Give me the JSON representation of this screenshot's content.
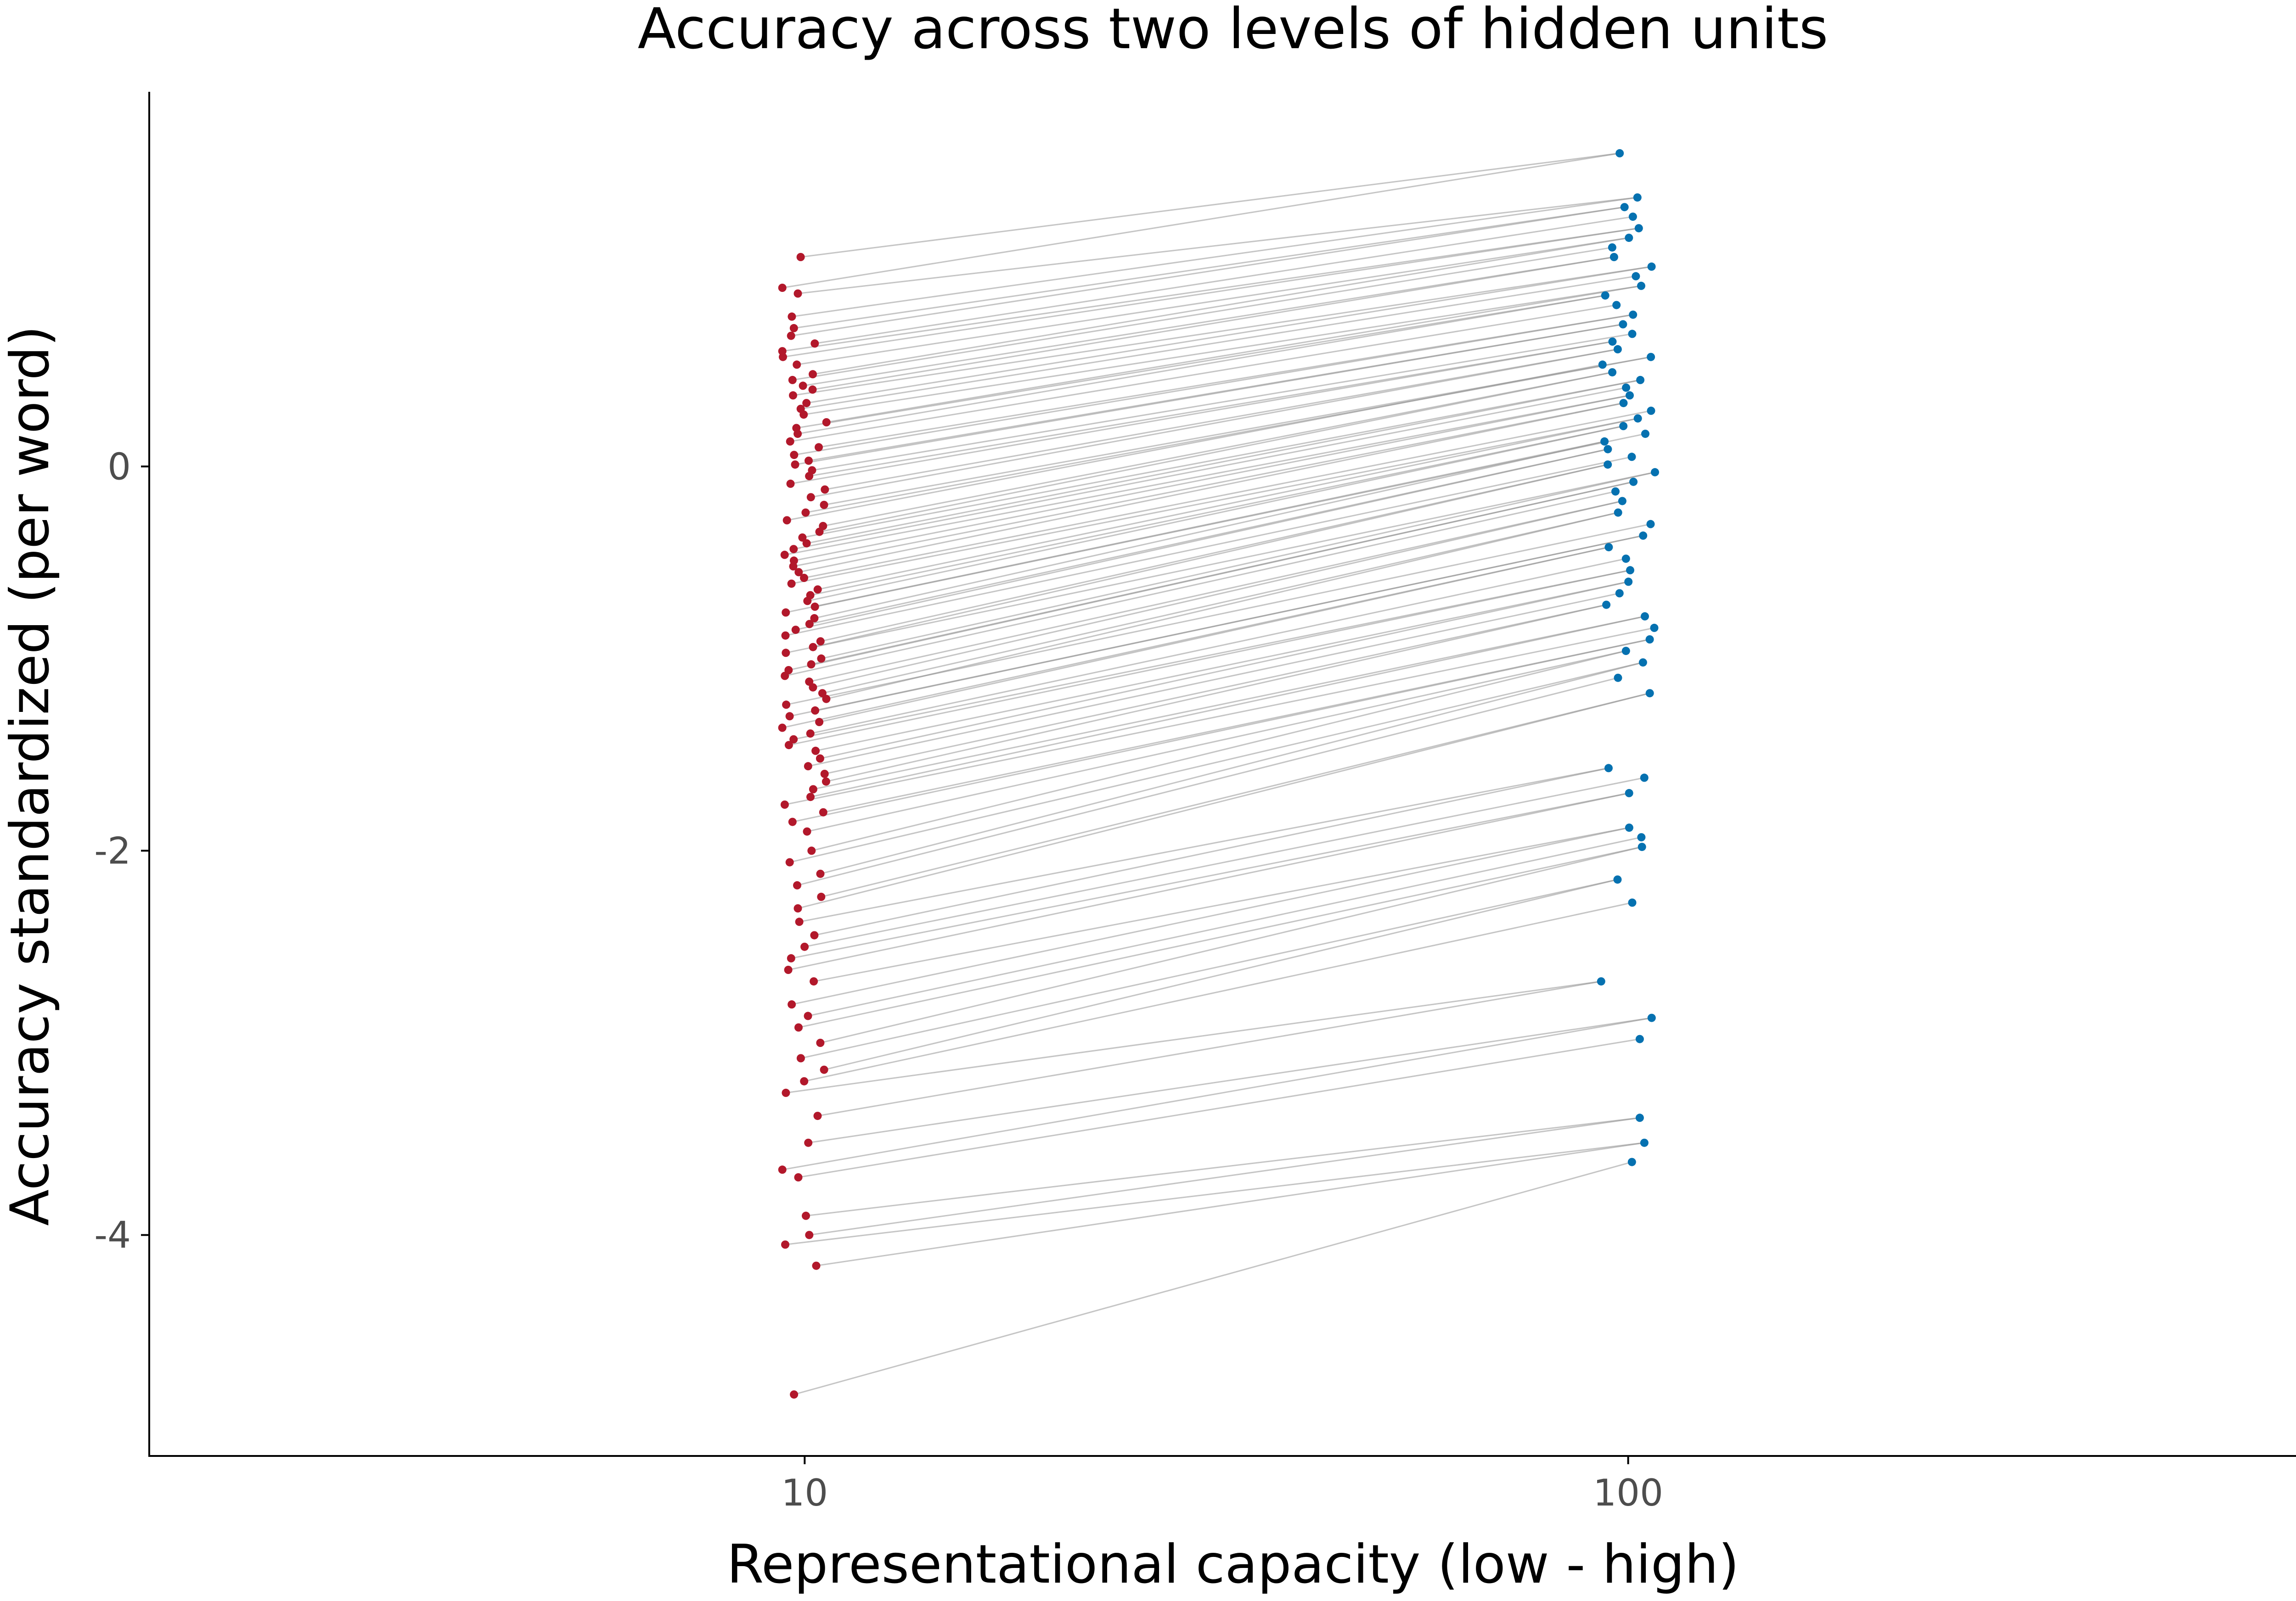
{
  "chart_data": {
    "type": "scatter",
    "title": "Accuracy across two levels of hidden units",
    "xlabel": "Representational capacity (low - high)",
    "ylabel": "Accuracy standardized (per word)",
    "x_scale": "log",
    "x_ticks": [
      10,
      100
    ],
    "x_tick_labels": [
      "10",
      "100"
    ],
    "y_ticks": [
      -4,
      -2,
      0
    ],
    "y_tick_labels": [
      "-4",
      "-2",
      "0"
    ],
    "xlim": [
      1.6,
      690
    ],
    "ylim": [
      -5.15,
      1.95
    ],
    "grid": false,
    "legend": "none",
    "connected_pairs": true,
    "colors": {
      "low": "#b2182b",
      "high": "#0571b0",
      "pair_line": "#8c8c8c",
      "axis": "#000000",
      "tick_label": "#4d4d4d"
    },
    "series": [
      {
        "x": 10,
        "values": [
          1.09,
          0.93,
          0.9,
          0.78,
          0.72,
          0.68,
          0.64,
          0.6,
          0.57,
          0.53,
          0.48,
          0.45,
          0.42,
          0.4,
          0.37,
          0.33,
          0.3,
          0.27,
          0.23,
          0.2,
          0.17,
          0.13,
          0.1,
          0.06,
          0.03,
          0.01,
          -0.02,
          -0.05,
          -0.09,
          -0.12,
          -0.16,
          -0.2,
          -0.24,
          -0.28,
          -0.31,
          -0.34,
          -0.37,
          -0.4,
          -0.43,
          -0.46,
          -0.49,
          -0.52,
          -0.55,
          -0.58,
          -0.61,
          -0.64,
          -0.67,
          -0.7,
          -0.73,
          -0.76,
          -0.79,
          -0.82,
          -0.85,
          -0.88,
          -0.91,
          -0.94,
          -0.97,
          -1.0,
          -1.03,
          -1.06,
          -1.09,
          -1.12,
          -1.15,
          -1.18,
          -1.21,
          -1.24,
          -1.27,
          -1.3,
          -1.33,
          -1.36,
          -1.39,
          -1.42,
          -1.45,
          -1.48,
          -1.52,
          -1.56,
          -1.6,
          -1.64,
          -1.68,
          -1.72,
          -1.76,
          -1.8,
          -1.85,
          -1.9,
          -2.0,
          -2.06,
          -2.12,
          -2.18,
          -2.24,
          -2.3,
          -2.37,
          -2.44,
          -2.5,
          -2.56,
          -2.62,
          -2.68,
          -2.8,
          -2.86,
          -2.92,
          -3.0,
          -3.08,
          -3.14,
          -3.2,
          -3.26,
          -3.38,
          -3.52,
          -3.66,
          -3.7,
          -3.9,
          -4.0,
          -4.05,
          -4.16,
          -4.83
        ]
      },
      {
        "x": 100,
        "values": [
          1.63,
          1.4,
          1.35,
          1.3,
          1.24,
          1.19,
          1.14,
          1.09,
          1.04,
          0.99,
          0.94,
          0.89,
          0.84,
          0.79,
          0.74,
          0.69,
          0.65,
          0.61,
          0.57,
          0.53,
          0.49,
          0.45,
          0.41,
          0.37,
          0.33,
          0.29,
          0.25,
          0.21,
          0.17,
          0.13,
          0.09,
          0.05,
          0.01,
          -0.03,
          -0.08,
          -0.13,
          -0.18,
          -0.24,
          -0.3,
          -0.36,
          -0.42,
          -0.48,
          -0.54,
          -0.6,
          -0.66,
          -0.72,
          -0.78,
          -0.84,
          -0.9,
          -0.96,
          -1.02,
          -1.1,
          -1.18,
          -1.57,
          -1.62,
          -1.7,
          -1.88,
          -1.93,
          -1.98,
          -2.15,
          -2.27,
          -2.68,
          -2.87,
          -2.98,
          -3.39,
          -3.52,
          -3.62
        ]
      }
    ]
  }
}
